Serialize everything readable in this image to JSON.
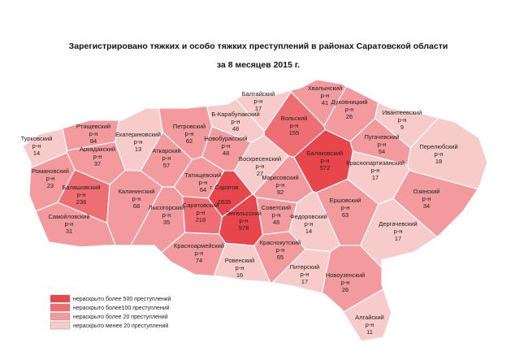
{
  "title": "Зарегистрировано тяжких и особо тяжких преступлений в районах Саратовской области",
  "subtitle": "за 8 месяцев 2015 г.",
  "legend": [
    {
      "label": "нераскрыто более 500 преступлений",
      "color": "#e8464d"
    },
    {
      "label": "нераскрыто более100 преступлений",
      "color": "#ee6e73"
    },
    {
      "label": "нераскрыто более 20 преступлений",
      "color": "#f29a9d"
    },
    {
      "label": "нераскрыто менее 20 преступлений",
      "color": "#f8cbcb"
    }
  ],
  "districts": [
    {
      "name": "Балтайский",
      "kind": "р-н",
      "value": 17,
      "level": 3
    },
    {
      "name": "Хвалынский",
      "kind": "р-н",
      "value": 41,
      "level": 2
    },
    {
      "name": "Вольский",
      "kind": "р-н",
      "value": 155,
      "level": 1
    },
    {
      "name": "Духовницкий",
      "kind": "р-н",
      "value": 26,
      "level": 2
    },
    {
      "name": "Ивантеевский",
      "kind": "р-н",
      "value": 9,
      "level": 3
    },
    {
      "name": "Ртищевский",
      "kind": "р-н",
      "value": 84,
      "level": 2
    },
    {
      "name": "Турковский",
      "kind": "р-н",
      "value": 14,
      "level": 3
    },
    {
      "name": "Екатериновский",
      "kind": "р-н",
      "value": 13,
      "level": 3
    },
    {
      "name": "Петровский",
      "kind": "р-н",
      "value": 62,
      "level": 2
    },
    {
      "name": "Б-Карабулакский",
      "kind": "р-н",
      "value": 48,
      "level": 3
    },
    {
      "name": "Новобурасский",
      "kind": "р-н",
      "value": 48,
      "level": 2
    },
    {
      "name": "Пугачевский",
      "kind": "р-н",
      "value": 54,
      "level": 2
    },
    {
      "name": "Перелюбский",
      "kind": "р-н",
      "value": 18,
      "level": 3
    },
    {
      "name": "Аркадакский",
      "kind": "р-н",
      "value": 37,
      "level": 2
    },
    {
      "name": "Аткарский",
      "kind": "р-н",
      "value": 57,
      "level": 2
    },
    {
      "name": "Балаковский",
      "kind": "р-н",
      "value": 572,
      "level": 0
    },
    {
      "name": "Романовский",
      "kind": "р-н",
      "value": 23,
      "level": 2
    },
    {
      "name": "Воскресенский",
      "kind": "р-н",
      "value": 27,
      "level": 3
    },
    {
      "name": "Краснопартизанский",
      "kind": "р-н",
      "value": 17,
      "level": 3
    },
    {
      "name": "Татищевский",
      "kind": "р-н",
      "value": 64,
      "level": 2
    },
    {
      "name": "Балашовский",
      "kind": "р-н",
      "value": 236,
      "level": 1
    },
    {
      "name": "Калининский",
      "kind": "р-н",
      "value": 68,
      "level": 2
    },
    {
      "name": "г. Саратов",
      "kind": null,
      "value": 2635,
      "level": 0
    },
    {
      "name": "Марксовский",
      "kind": "р-н",
      "value": 92,
      "level": 2
    },
    {
      "name": "Саратовский",
      "kind": "р-н",
      "value": 218,
      "level": 1
    },
    {
      "name": "Ершовский",
      "kind": "р-н",
      "value": 63,
      "level": 2
    },
    {
      "name": "Озинский",
      "kind": "р-н",
      "value": 34,
      "level": 2
    },
    {
      "name": "Лысогорский",
      "kind": "р-н",
      "value": 35,
      "level": 2
    },
    {
      "name": "Энгельсский",
      "kind": "р-н",
      "value": 978,
      "level": 0
    },
    {
      "name": "Советский",
      "kind": "р-н",
      "value": 48,
      "level": 2
    },
    {
      "name": "Самойловский",
      "kind": "р-н",
      "value": 31,
      "level": 2
    },
    {
      "name": "Федоровский",
      "kind": "р-н",
      "value": 14,
      "level": 3
    },
    {
      "name": "Дергачевский",
      "kind": "р-н",
      "value": 17,
      "level": 3
    },
    {
      "name": "Краснокутский",
      "kind": "р-н",
      "value": 65,
      "level": 2
    },
    {
      "name": "Красноармейский",
      "kind": "р-н",
      "value": 74,
      "level": 2
    },
    {
      "name": "Ровенский",
      "kind": "р-н",
      "value": 16,
      "level": 3
    },
    {
      "name": "Питерский",
      "kind": "р-н",
      "value": 17,
      "level": 3
    },
    {
      "name": "Новоузенский",
      "kind": "р-н",
      "value": 26,
      "level": 2
    },
    {
      "name": "Алгайский",
      "kind": "р-н",
      "value": 11,
      "level": 3
    }
  ]
}
